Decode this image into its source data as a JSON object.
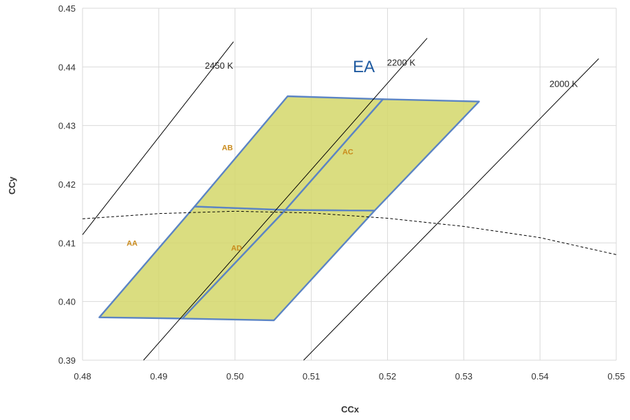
{
  "chart_data": {
    "type": "scatter",
    "xlabel": "CCx",
    "ylabel": "CCy",
    "xlim": [
      0.48,
      0.55
    ],
    "ylim": [
      0.39,
      0.45
    ],
    "x_ticks": [
      "0.48",
      "0.49",
      "0.50",
      "0.51",
      "0.52",
      "0.53",
      "0.54",
      "0.55"
    ],
    "y_ticks": [
      "0.39",
      "0.40",
      "0.41",
      "0.42",
      "0.43",
      "0.44",
      "0.45"
    ],
    "grid": true,
    "region_label": "EA",
    "bins": [
      {
        "name": "AA",
        "label_at": [
          0.4865,
          0.4095
        ],
        "vertices": [
          [
            0.4822,
            0.3973
          ],
          [
            0.4947,
            0.4162
          ],
          [
            0.5066,
            0.4156
          ],
          [
            0.4931,
            0.3971
          ]
        ]
      },
      {
        "name": "AB",
        "label_at": [
          0.499,
          0.4258
        ],
        "vertices": [
          [
            0.4947,
            0.4162
          ],
          [
            0.5069,
            0.435
          ],
          [
            0.5194,
            0.4345
          ],
          [
            0.5066,
            0.4156
          ]
        ]
      },
      {
        "name": "AC",
        "label_at": [
          0.5148,
          0.4251
        ],
        "vertices": [
          [
            0.5066,
            0.4156
          ],
          [
            0.5194,
            0.4345
          ],
          [
            0.532,
            0.4341
          ],
          [
            0.5183,
            0.4155
          ]
        ]
      },
      {
        "name": "AD",
        "label_at": [
          0.5002,
          0.4087
        ],
        "vertices": [
          [
            0.4931,
            0.3971
          ],
          [
            0.5066,
            0.4156
          ],
          [
            0.5183,
            0.4155
          ],
          [
            0.5051,
            0.3968
          ]
        ]
      }
    ],
    "isotherms": [
      {
        "label": "2450 K",
        "from": [
          0.48,
          0.4114
        ],
        "to": [
          0.4998,
          0.4443
        ],
        "label_at": [
          0.4979,
          0.4397
        ]
      },
      {
        "label": "2200 K",
        "from": [
          0.488,
          0.39
        ],
        "to": [
          0.5252,
          0.4449
        ],
        "label_at": [
          0.5218,
          0.4402
        ]
      },
      {
        "label": "2000 K",
        "from": [
          0.509,
          0.39
        ],
        "to": [
          0.5477,
          0.4414
        ],
        "label_at": [
          0.5431,
          0.4366
        ]
      }
    ],
    "planckian_locus": [
      [
        0.48,
        0.4141
      ],
      [
        0.49,
        0.415
      ],
      [
        0.5,
        0.4154
      ],
      [
        0.51,
        0.4151
      ],
      [
        0.52,
        0.4142
      ],
      [
        0.53,
        0.4128
      ],
      [
        0.54,
        0.4109
      ],
      [
        0.55,
        0.408
      ]
    ],
    "colors": {
      "bin_fill": "#d3d76a",
      "bin_stroke": "#5b84c4",
      "bin_label": "#c98a1b",
      "region_label": "#1f5aa0",
      "isotherm": "#000000",
      "grid": "#d9d9d9"
    }
  }
}
